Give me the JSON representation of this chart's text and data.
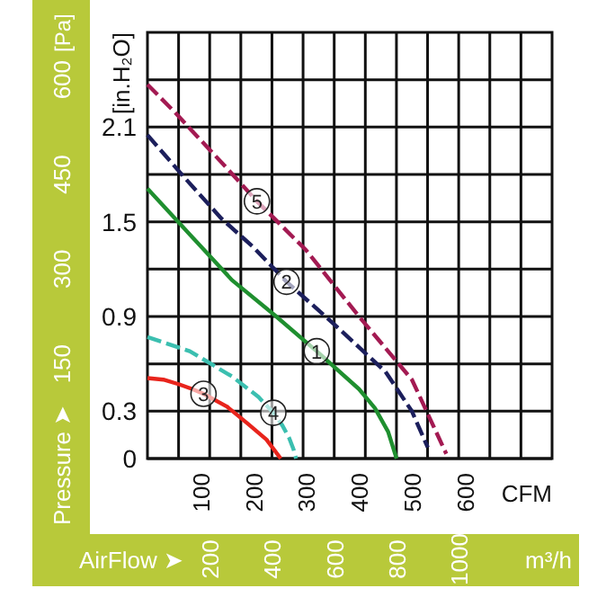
{
  "chart_data": {
    "type": "line",
    "xlabel": "CFM",
    "ylabel": "[in.H₂O]",
    "y2label": "[Pa]",
    "x2label": "m³/h",
    "annotations": [
      "Pressure ➤",
      "AirFlow ➤"
    ],
    "xlim": [
      0,
      765
    ],
    "xticks": [
      100,
      200,
      300,
      400,
      500,
      600
    ],
    "x2lim": [
      0,
      1300
    ],
    "x2ticks": [
      {
        "value": 100,
        "label": null
      },
      200,
      {
        "value": 300,
        "label": null
      },
      400,
      {
        "value": 500,
        "label": null
      },
      600,
      {
        "value": 700,
        "label": null
      },
      800,
      {
        "value": 900,
        "label": null
      },
      1000,
      {
        "value": 1100,
        "label": null
      },
      {
        "value": 1200,
        "label": null
      }
    ],
    "ylim": [
      0,
      2.7
    ],
    "yticks": [
      0,
      0.3,
      {
        "value": 0.6,
        "label": null
      },
      0.9,
      {
        "value": 1.2,
        "label": null
      },
      1.5,
      {
        "value": 1.8,
        "label": null
      },
      2.1,
      {
        "value": 2.4,
        "label": null
      }
    ],
    "y2lim": [
      0,
      675
    ],
    "y2ticks": [
      150,
      300,
      450,
      600
    ],
    "grid": true,
    "marker": "none",
    "series": [
      {
        "name": "1",
        "color": "#1f8f2f",
        "line_style": "solid",
        "x": [
          0,
          80,
          160,
          240,
          320,
          400,
          430,
          455,
          471
        ],
        "values": [
          1.71,
          1.42,
          1.13,
          0.91,
          0.68,
          0.44,
          0.32,
          0.17,
          0
        ]
      },
      {
        "name": "2",
        "color": "#1c1f5c",
        "line_style": "dashed",
        "x": [
          0,
          70,
          140,
          200,
          263,
          350,
          450,
          500,
          530
        ],
        "values": [
          2.05,
          1.78,
          1.52,
          1.34,
          1.12,
          0.86,
          0.55,
          0.3,
          0.07
        ]
      },
      {
        "name": "3",
        "color": "#e8241c",
        "line_style": "solid",
        "x": [
          0,
          30,
          60,
          85,
          106,
          150,
          190,
          225,
          252
        ],
        "values": [
          0.51,
          0.5,
          0.47,
          0.44,
          0.41,
          0.33,
          0.22,
          0.12,
          0
        ]
      },
      {
        "name": "4",
        "color": "#3bbfb0",
        "line_style": "dashed",
        "x": [
          0,
          80,
          160,
          210,
          238,
          255,
          268,
          276,
          281
        ],
        "values": [
          0.77,
          0.68,
          0.52,
          0.39,
          0.29,
          0.21,
          0.13,
          0.06,
          0
        ]
      },
      {
        "name": "5",
        "color": "#a31a52",
        "line_style": "dashed",
        "x": [
          0,
          50,
          100,
          150,
          207,
          300,
          400,
          500,
          565
        ],
        "values": [
          2.37,
          2.2,
          2.02,
          1.84,
          1.63,
          1.32,
          0.9,
          0.5,
          0.03
        ]
      }
    ]
  }
}
